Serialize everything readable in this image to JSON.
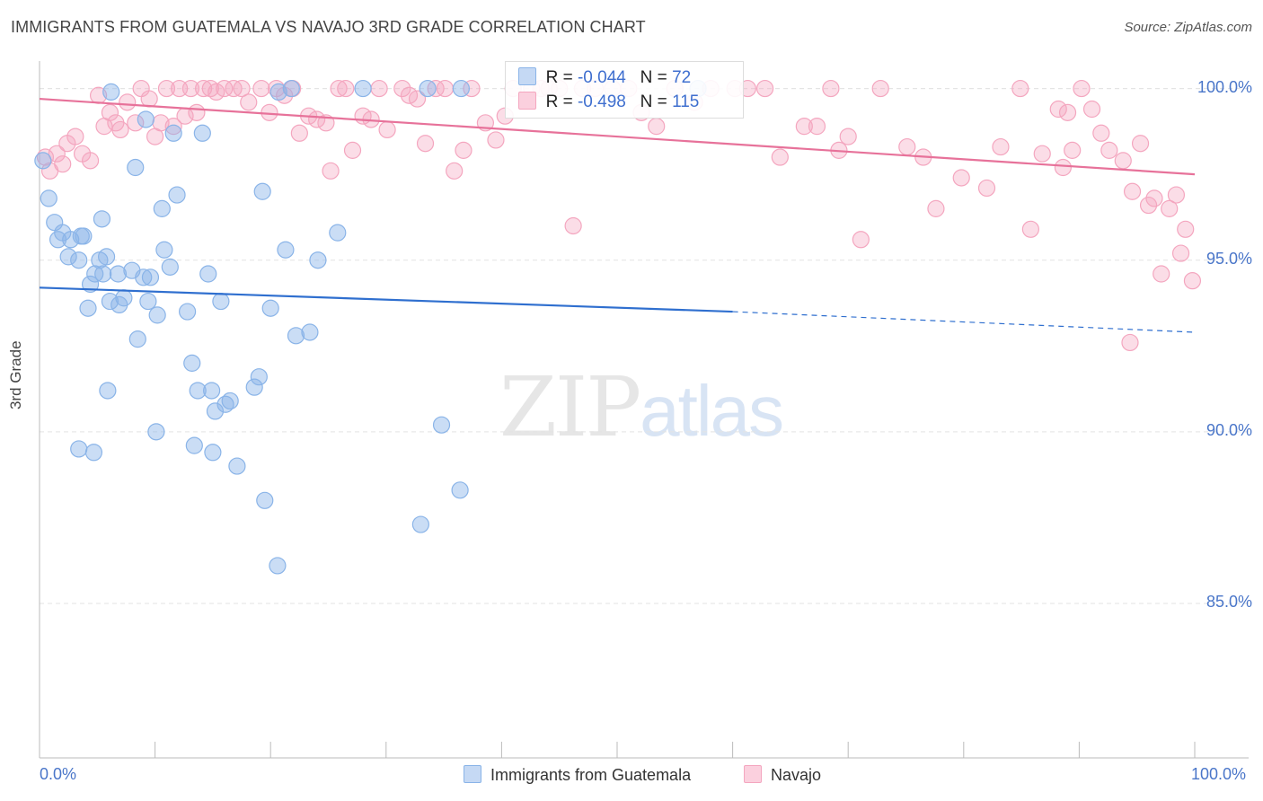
{
  "title": "IMMIGRANTS FROM GUATEMALA VS NAVAJO 3RD GRADE CORRELATION CHART",
  "source": "Source: ZipAtlas.com",
  "watermark": {
    "zip": "ZIP",
    "atlas": "atlas"
  },
  "legend": {
    "r_label": "R =",
    "n_label": "N =",
    "series": [
      {
        "name": "Immigrants from Guatemala",
        "r": "-0.044",
        "n": "72",
        "color": "#8ab4e8"
      },
      {
        "name": "Navajo",
        "r": "-0.498",
        "n": "115",
        "color": "#f4a6bf"
      }
    ]
  },
  "chart_data": {
    "type": "scatter",
    "title": "IMMIGRANTS FROM GUATEMALA VS NAVAJO 3RD GRADE CORRELATION CHART",
    "xlabel": "",
    "ylabel": "3rd Grade",
    "xlim": [
      0,
      100
    ],
    "ylim": [
      80.5,
      100.8
    ],
    "x_tick_labels": [
      "0.0%",
      "100.0%"
    ],
    "y_ticks": [
      85,
      90,
      95,
      100
    ],
    "y_tick_labels": [
      "85.0%",
      "90.0%",
      "95.0%",
      "100.0%"
    ],
    "grid": "horizontal dashed",
    "legend_position": "top-center",
    "series": [
      {
        "name": "Immigrants from Guatemala",
        "color": "#8ab4e8",
        "line_color": "#2f6fcf",
        "trend": {
          "x0": 0,
          "y0": 94.2,
          "x1": 60,
          "y1": 93.5,
          "x_end": 100,
          "y_end": 92.9
        },
        "points": [
          [
            0.3,
            97.9
          ],
          [
            0.8,
            96.8
          ],
          [
            1.3,
            96.1
          ],
          [
            1.6,
            95.6
          ],
          [
            2.0,
            95.8
          ],
          [
            2.5,
            95.1
          ],
          [
            2.7,
            95.6
          ],
          [
            3.4,
            95.0
          ],
          [
            3.6,
            95.7
          ],
          [
            3.8,
            95.7
          ],
          [
            4.2,
            93.6
          ],
          [
            4.4,
            94.3
          ],
          [
            4.8,
            94.6
          ],
          [
            5.2,
            95.0
          ],
          [
            5.5,
            94.6
          ],
          [
            5.8,
            95.1
          ],
          [
            6.1,
            93.8
          ],
          [
            6.8,
            94.6
          ],
          [
            6.9,
            93.7
          ],
          [
            7.3,
            93.9
          ],
          [
            8.0,
            94.7
          ],
          [
            8.5,
            92.7
          ],
          [
            9.0,
            94.5
          ],
          [
            9.4,
            93.8
          ],
          [
            9.6,
            94.5
          ],
          [
            10.2,
            93.4
          ],
          [
            10.8,
            95.3
          ],
          [
            11.3,
            94.8
          ],
          [
            11.6,
            98.7
          ],
          [
            12.8,
            93.5
          ],
          [
            13.2,
            92.0
          ],
          [
            13.7,
            91.2
          ],
          [
            14.1,
            98.7
          ],
          [
            14.6,
            94.6
          ],
          [
            14.9,
            91.2
          ],
          [
            15.2,
            90.6
          ],
          [
            15.7,
            93.8
          ],
          [
            16.1,
            90.8
          ],
          [
            16.5,
            90.9
          ],
          [
            17.1,
            89.0
          ],
          [
            18.6,
            91.3
          ],
          [
            19.0,
            91.6
          ],
          [
            19.3,
            97.0
          ],
          [
            19.5,
            88.0
          ],
          [
            20.0,
            93.6
          ],
          [
            20.6,
            86.1
          ],
          [
            20.7,
            99.9
          ],
          [
            21.3,
            95.3
          ],
          [
            21.8,
            100.0
          ],
          [
            22.2,
            92.8
          ],
          [
            23.4,
            92.9
          ],
          [
            24.1,
            95.0
          ],
          [
            25.8,
            95.8
          ],
          [
            8.3,
            97.7
          ],
          [
            11.9,
            96.9
          ],
          [
            10.6,
            96.5
          ],
          [
            5.4,
            96.2
          ],
          [
            15.0,
            89.4
          ],
          [
            3.4,
            89.5
          ],
          [
            4.7,
            89.4
          ],
          [
            13.4,
            89.6
          ],
          [
            10.1,
            90.0
          ],
          [
            5.9,
            91.2
          ],
          [
            33.0,
            87.3
          ],
          [
            36.4,
            88.3
          ],
          [
            34.8,
            90.2
          ],
          [
            33.6,
            100.0
          ],
          [
            36.5,
            100.0
          ],
          [
            28.0,
            100.0
          ],
          [
            57.0,
            100.0
          ],
          [
            6.2,
            99.9
          ],
          [
            9.2,
            99.1
          ]
        ]
      },
      {
        "name": "Navajo",
        "color": "#f4a6bf",
        "line_color": "#e7729a",
        "trend": {
          "x0": 0,
          "y0": 99.7,
          "x1": 100,
          "y1": 97.5
        },
        "points": [
          [
            0.5,
            98.0
          ],
          [
            0.9,
            97.6
          ],
          [
            1.5,
            98.1
          ],
          [
            2.0,
            97.8
          ],
          [
            2.4,
            98.4
          ],
          [
            3.1,
            98.6
          ],
          [
            3.7,
            98.1
          ],
          [
            4.4,
            97.9
          ],
          [
            5.1,
            99.8
          ],
          [
            5.6,
            98.9
          ],
          [
            6.1,
            99.3
          ],
          [
            6.6,
            99.0
          ],
          [
            7.0,
            98.8
          ],
          [
            7.6,
            99.6
          ],
          [
            8.3,
            99.0
          ],
          [
            8.8,
            100.0
          ],
          [
            9.5,
            99.7
          ],
          [
            10.0,
            98.6
          ],
          [
            10.5,
            99.0
          ],
          [
            11.0,
            100.0
          ],
          [
            11.6,
            98.9
          ],
          [
            12.1,
            100.0
          ],
          [
            12.6,
            99.2
          ],
          [
            13.1,
            100.0
          ],
          [
            13.6,
            99.3
          ],
          [
            14.2,
            100.0
          ],
          [
            14.8,
            100.0
          ],
          [
            15.3,
            99.9
          ],
          [
            16.0,
            100.0
          ],
          [
            16.8,
            100.0
          ],
          [
            17.5,
            100.0
          ],
          [
            18.1,
            99.6
          ],
          [
            19.2,
            100.0
          ],
          [
            19.9,
            99.3
          ],
          [
            20.5,
            100.0
          ],
          [
            21.2,
            99.8
          ],
          [
            21.9,
            100.0
          ],
          [
            22.5,
            98.7
          ],
          [
            23.3,
            99.2
          ],
          [
            24.0,
            99.1
          ],
          [
            24.8,
            99.0
          ],
          [
            25.2,
            97.6
          ],
          [
            25.9,
            100.0
          ],
          [
            26.5,
            100.0
          ],
          [
            27.1,
            98.2
          ],
          [
            28.0,
            99.2
          ],
          [
            28.7,
            99.1
          ],
          [
            29.4,
            100.0
          ],
          [
            30.1,
            98.8
          ],
          [
            31.4,
            100.0
          ],
          [
            32.0,
            99.8
          ],
          [
            32.7,
            99.7
          ],
          [
            33.4,
            98.4
          ],
          [
            34.3,
            100.0
          ],
          [
            35.1,
            100.0
          ],
          [
            35.9,
            97.6
          ],
          [
            36.7,
            98.2
          ],
          [
            37.4,
            100.0
          ],
          [
            38.6,
            99.0
          ],
          [
            39.5,
            98.5
          ],
          [
            40.3,
            99.2
          ],
          [
            41.0,
            100.0
          ],
          [
            42.6,
            100.0
          ],
          [
            43.4,
            100.0
          ],
          [
            44.1,
            100.0
          ],
          [
            45.0,
            100.0
          ],
          [
            46.2,
            96.0
          ],
          [
            47.0,
            100.0
          ],
          [
            48.1,
            100.0
          ],
          [
            49.6,
            100.0
          ],
          [
            51.0,
            100.0
          ],
          [
            52.1,
            99.3
          ],
          [
            53.4,
            98.9
          ],
          [
            55.0,
            100.0
          ],
          [
            56.7,
            99.6
          ],
          [
            58.1,
            100.0
          ],
          [
            60.2,
            100.0
          ],
          [
            61.3,
            100.0
          ],
          [
            62.8,
            100.0
          ],
          [
            64.1,
            98.0
          ],
          [
            66.2,
            98.9
          ],
          [
            67.3,
            98.9
          ],
          [
            68.5,
            100.0
          ],
          [
            69.2,
            98.2
          ],
          [
            70.0,
            98.6
          ],
          [
            71.1,
            95.6
          ],
          [
            72.8,
            100.0
          ],
          [
            75.1,
            98.3
          ],
          [
            76.5,
            98.0
          ],
          [
            77.6,
            96.5
          ],
          [
            79.8,
            97.4
          ],
          [
            82.0,
            97.1
          ],
          [
            83.2,
            98.3
          ],
          [
            84.9,
            100.0
          ],
          [
            85.8,
            95.9
          ],
          [
            86.8,
            98.1
          ],
          [
            88.2,
            99.4
          ],
          [
            88.6,
            97.7
          ],
          [
            89.0,
            99.3
          ],
          [
            89.4,
            98.2
          ],
          [
            90.2,
            100.0
          ],
          [
            91.1,
            99.4
          ],
          [
            91.9,
            98.7
          ],
          [
            92.6,
            98.2
          ],
          [
            93.8,
            97.9
          ],
          [
            94.6,
            97.0
          ],
          [
            95.3,
            98.4
          ],
          [
            96.0,
            96.6
          ],
          [
            96.5,
            96.8
          ],
          [
            97.1,
            94.6
          ],
          [
            97.8,
            96.5
          ],
          [
            98.4,
            96.9
          ],
          [
            98.8,
            95.2
          ],
          [
            99.2,
            95.9
          ],
          [
            99.8,
            94.4
          ],
          [
            94.4,
            92.6
          ]
        ]
      }
    ]
  }
}
